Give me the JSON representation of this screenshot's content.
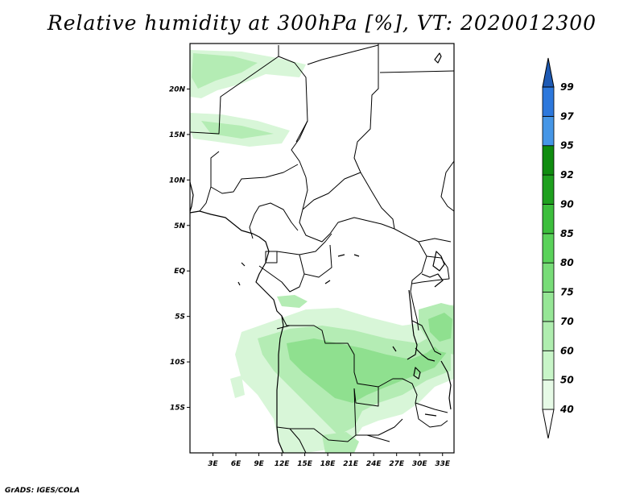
{
  "title": "Relative humidity at 300hPa [%], VT: 2020012300",
  "credit": "GrADS: IGES/COLA",
  "map": {
    "lon_range": [
      0,
      34.5
    ],
    "lat_range": [
      -20,
      25
    ],
    "lat_ticks": [
      {
        "value": 20,
        "label": "20N"
      },
      {
        "value": 15,
        "label": "15N"
      },
      {
        "value": 10,
        "label": "10N"
      },
      {
        "value": 5,
        "label": "5N"
      },
      {
        "value": 0,
        "label": "EQ"
      },
      {
        "value": -5,
        "label": "5S"
      },
      {
        "value": -10,
        "label": "10S"
      },
      {
        "value": -15,
        "label": "15S"
      }
    ],
    "lon_ticks": [
      {
        "value": 3,
        "label": "3E"
      },
      {
        "value": 6,
        "label": "6E"
      },
      {
        "value": 9,
        "label": "9E"
      },
      {
        "value": 12,
        "label": "12E"
      },
      {
        "value": 15,
        "label": "15E"
      },
      {
        "value": 18,
        "label": "18E"
      },
      {
        "value": 21,
        "label": "21E"
      },
      {
        "value": 24,
        "label": "24E"
      },
      {
        "value": 27,
        "label": "27E"
      },
      {
        "value": 30,
        "label": "30E"
      },
      {
        "value": 33,
        "label": "33E"
      }
    ]
  },
  "colorbar": {
    "levels": [
      "40",
      "50",
      "60",
      "70",
      "75",
      "80",
      "85",
      "90",
      "92",
      "95",
      "97",
      "99"
    ],
    "colors": [
      "#ffffff",
      "#e6fae6",
      "#c8f5c8",
      "#afedaf",
      "#96e696",
      "#78dc78",
      "#5ad25a",
      "#3cbe3c",
      "#1ea01e",
      "#0f8c0f",
      "#4696e6",
      "#2d78dc",
      "#1e5ab4"
    ]
  },
  "humidity_colors": {
    "light": "#d8f6d8",
    "mid": "#b4ecb4",
    "strong": "#8fe08f",
    "deep": "#78d878"
  }
}
